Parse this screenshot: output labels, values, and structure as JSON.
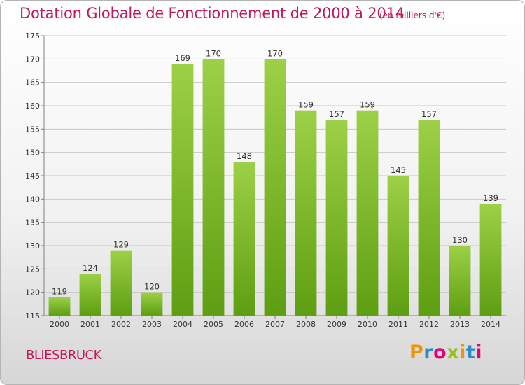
{
  "header": {
    "title": "Dotation Globale de Fonctionnement de 2000 à 2014",
    "subtitle": "(en milliers d'€)"
  },
  "footer": {
    "town": "BLIESBRUCK",
    "logo": {
      "letters": [
        "P",
        "r",
        "o",
        "x",
        "i",
        "t",
        "i"
      ],
      "colors": [
        "#f39200",
        "#2e8bc9",
        "#e6007e",
        "#95c11f",
        "#f39200",
        "#2e8bc9",
        "#e6007e"
      ]
    }
  },
  "colors": {
    "bar_light": "#9dd047",
    "bar_dark": "#5e9e12",
    "grid": "#c8c8c8",
    "axis": "#808080"
  },
  "chart_data": {
    "type": "bar",
    "title": "Dotation Globale de Fonctionnement de 2000 à 2014",
    "ylabel": "en milliers d'€",
    "categories": [
      "2000",
      "2001",
      "2002",
      "2003",
      "2004",
      "2005",
      "2006",
      "2007",
      "2008",
      "2009",
      "2010",
      "2011",
      "2012",
      "2013",
      "2014"
    ],
    "values": [
      119,
      124,
      129,
      120,
      169,
      170,
      148,
      170,
      159,
      157,
      159,
      145,
      157,
      130,
      139
    ],
    "ylim": [
      115,
      175
    ],
    "yticks": [
      115,
      120,
      125,
      130,
      135,
      140,
      145,
      150,
      155,
      160,
      165,
      170,
      175
    ],
    "grid": true
  }
}
